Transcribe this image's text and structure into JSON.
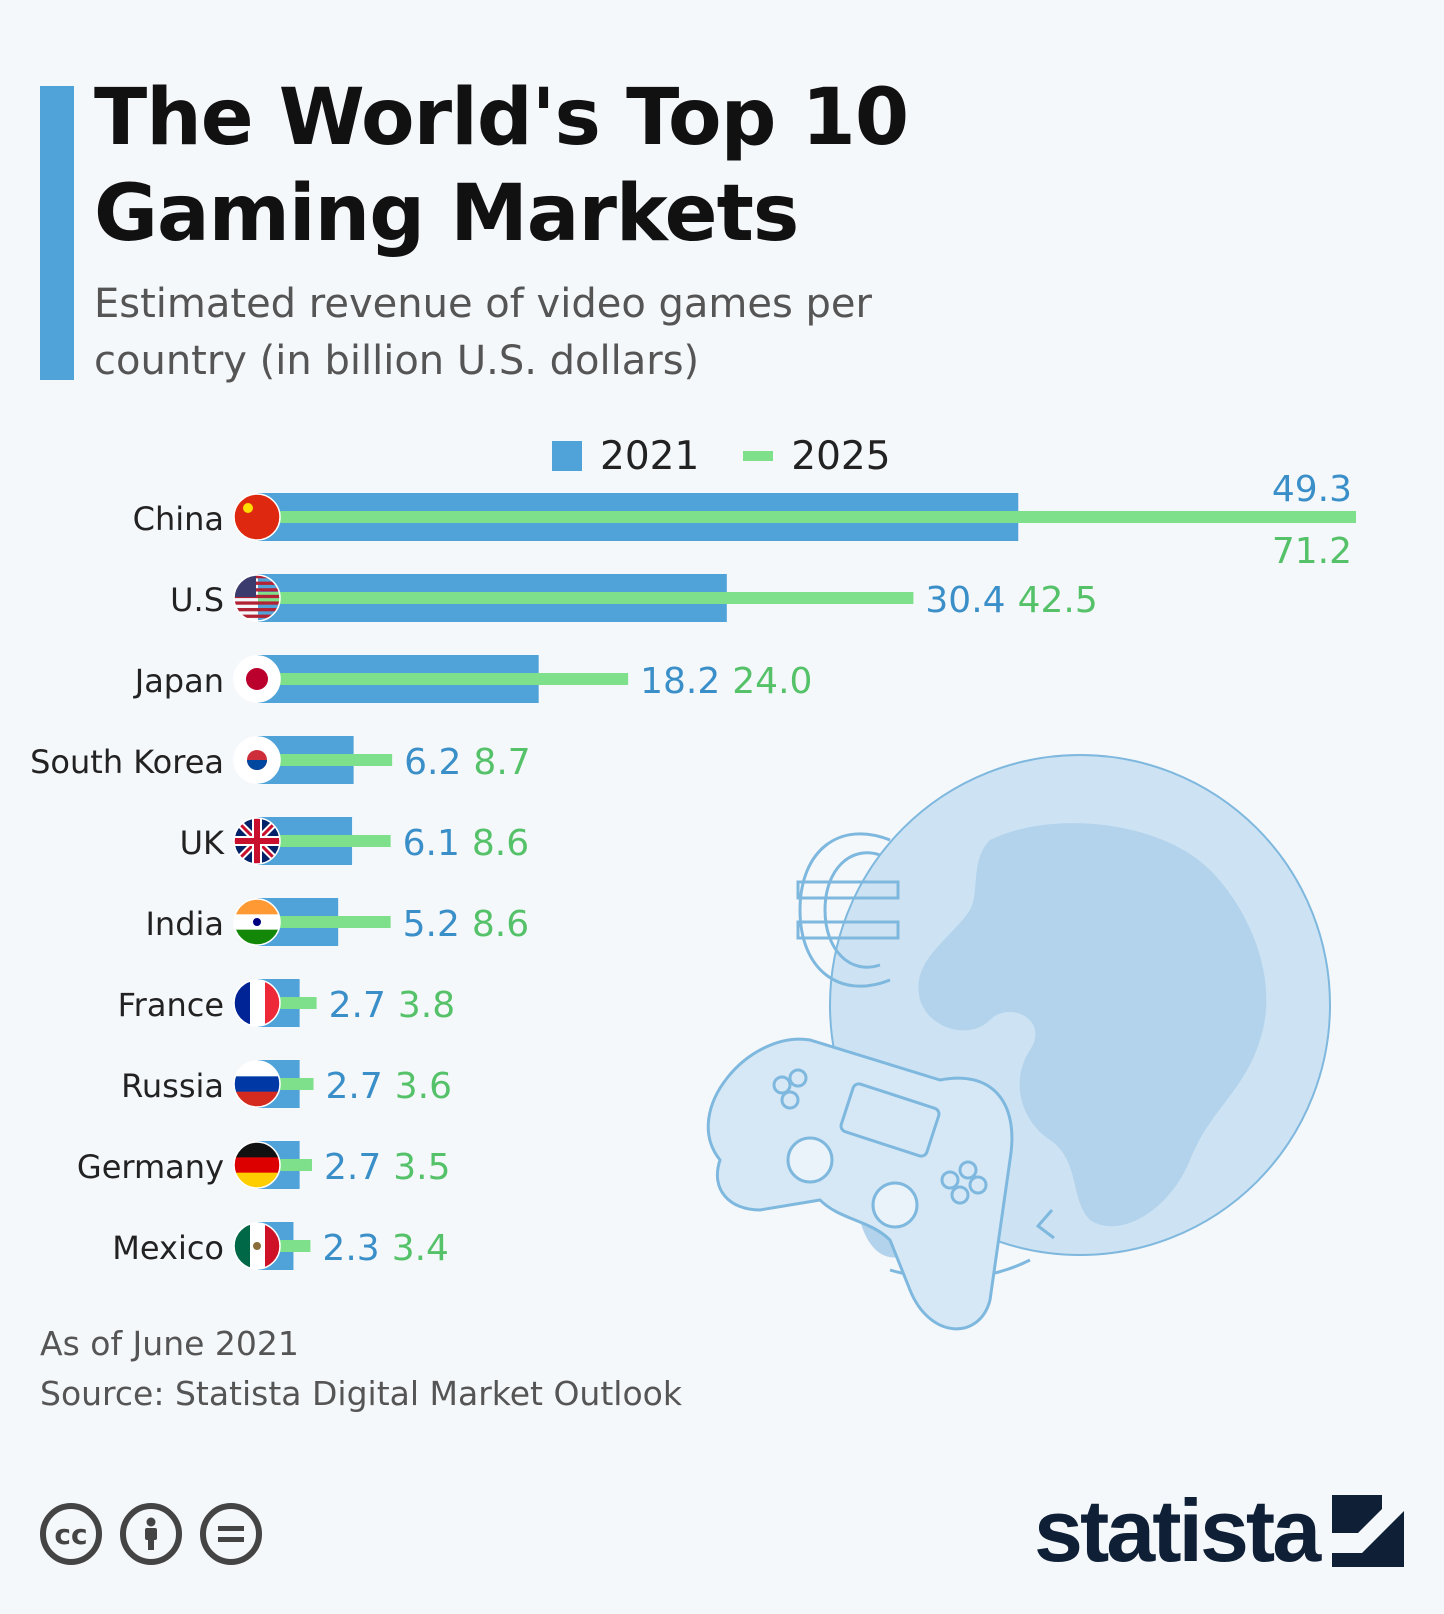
{
  "header": {
    "title": "The World's Top 10 Gaming Markets",
    "subtitle": "Estimated revenue of video games per country (in billion U.S. dollars)"
  },
  "legend": {
    "series_2021": "2021",
    "series_2025": "2025"
  },
  "colors": {
    "series_2021": "#4fa3d9",
    "series_2025": "#7ee08a",
    "accent": "#4fa3d9",
    "label_2021": "#3a8fc9",
    "label_2025": "#55c26a"
  },
  "chart_data": {
    "type": "bar",
    "orientation": "horizontal",
    "categories": [
      "China",
      "U.S",
      "Japan",
      "South Korea",
      "UK",
      "India",
      "France",
      "Russia",
      "Germany",
      "Mexico"
    ],
    "series": [
      {
        "name": "2021",
        "values": [
          49.3,
          30.4,
          18.2,
          6.2,
          6.1,
          5.2,
          2.7,
          2.7,
          2.7,
          2.3
        ]
      },
      {
        "name": "2025",
        "values": [
          71.2,
          42.5,
          24.0,
          8.7,
          8.6,
          8.6,
          3.8,
          3.6,
          3.5,
          3.4
        ]
      }
    ],
    "value_labels_2021": [
      "49.3",
      "30.4",
      "18.2",
      "6.2",
      "6.1",
      "5.2",
      "2.7",
      "2.7",
      "2.7",
      "2.3"
    ],
    "value_labels_2025": [
      "71.2",
      "42.5",
      "24.0",
      "8.7",
      "8.6",
      "8.6",
      "3.8",
      "3.6",
      "3.5",
      "3.4"
    ],
    "flags": [
      "china-flag-icon",
      "usa-flag-icon",
      "japan-flag-icon",
      "south-korea-flag-icon",
      "uk-flag-icon",
      "india-flag-icon",
      "france-flag-icon",
      "russia-flag-icon",
      "germany-flag-icon",
      "mexico-flag-icon"
    ],
    "xlim": [
      0,
      71.2
    ],
    "legend_position": "top-center",
    "grid": false
  },
  "footer": {
    "date_note": "As of June 2021",
    "source": "Source: Statista Digital Market Outlook",
    "license_icons": [
      "cc-icon",
      "attribution-icon",
      "no-derivatives-icon"
    ],
    "brand": "statista"
  }
}
